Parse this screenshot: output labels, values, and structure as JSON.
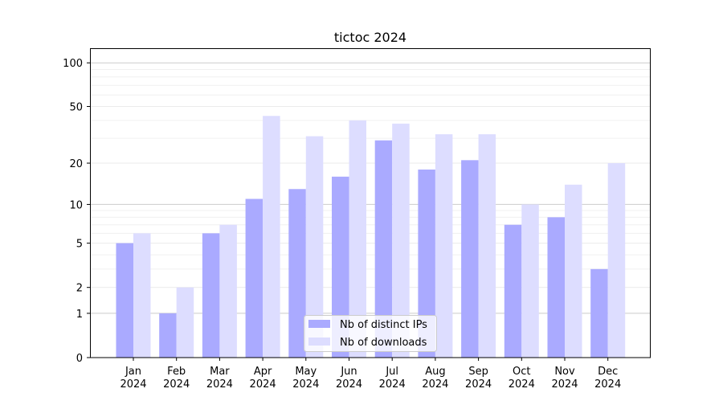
{
  "chart_data": {
    "type": "bar",
    "title": "tictoc 2024",
    "xlabel": "",
    "ylabel": "",
    "yscale": "log(1+y)",
    "ylim": [
      0,
      126
    ],
    "yticks": [
      0,
      1,
      2,
      5,
      10,
      20,
      50,
      100
    ],
    "yminor": [
      3,
      4,
      6,
      7,
      8,
      9,
      30,
      40,
      60,
      70,
      80,
      90
    ],
    "grid": true,
    "legend_position": "bottom-center",
    "categories": [
      [
        "Jan",
        "2024"
      ],
      [
        "Feb",
        "2024"
      ],
      [
        "Mar",
        "2024"
      ],
      [
        "Apr",
        "2024"
      ],
      [
        "May",
        "2024"
      ],
      [
        "Jun",
        "2024"
      ],
      [
        "Jul",
        "2024"
      ],
      [
        "Aug",
        "2024"
      ],
      [
        "Sep",
        "2024"
      ],
      [
        "Oct",
        "2024"
      ],
      [
        "Nov",
        "2024"
      ],
      [
        "Dec",
        "2024"
      ]
    ],
    "series": [
      {
        "name": "Nb of distinct IPs",
        "color": "#aaaaff",
        "values": [
          5,
          1,
          6,
          11,
          13,
          16,
          29,
          18,
          21,
          7,
          8,
          3
        ]
      },
      {
        "name": "Nb of downloads",
        "color": "#ddddff",
        "values": [
          6,
          2,
          7,
          43,
          31,
          40,
          38,
          32,
          32,
          10,
          14,
          20
        ]
      }
    ]
  }
}
